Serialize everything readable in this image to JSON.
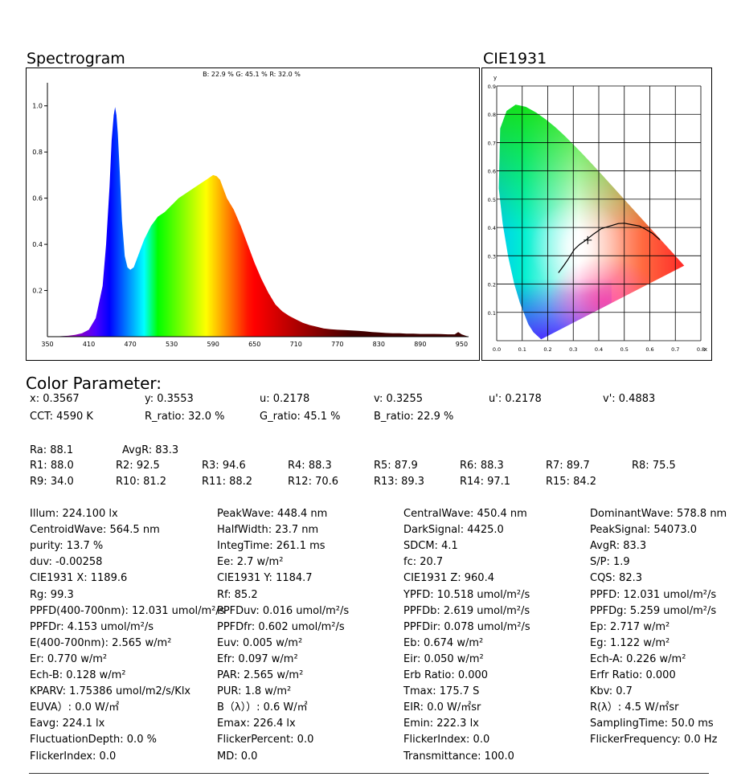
{
  "spectrogram": {
    "title": "Spectrogram",
    "ratio_label": "B: 22.9 %  G: 45.1 %  R: 32.0 %"
  },
  "cie": {
    "title": "CIE1931",
    "y_axis_label": "y",
    "x_axis_label": "x"
  },
  "chart_data": [
    {
      "type": "area",
      "title": "",
      "xlabel": "",
      "ylabel": "",
      "xlim": [
        350,
        960
      ],
      "ylim": [
        0,
        1.1
      ],
      "x_ticks": [
        350,
        410,
        470,
        530,
        590,
        650,
        710,
        770,
        830,
        890,
        950
      ],
      "y_ticks": [
        0.2,
        0.4,
        0.6,
        0.8,
        1.0
      ],
      "x_tick_labels": [
        "350",
        "410",
        "470",
        "530",
        "590",
        "650",
        "710",
        "770",
        "830",
        "890",
        "950"
      ],
      "y_tick_labels": [
        "0.2",
        "0.4",
        "0.6",
        "0.8",
        "1.0"
      ],
      "grid": false,
      "fill": "wavelength-colored spectrum",
      "x": [
        350,
        360,
        370,
        380,
        390,
        400,
        410,
        420,
        430,
        435,
        440,
        443,
        446,
        448,
        450,
        452,
        455,
        458,
        462,
        466,
        470,
        475,
        480,
        485,
        490,
        500,
        510,
        520,
        530,
        540,
        550,
        560,
        570,
        580,
        585,
        590,
        595,
        600,
        605,
        610,
        620,
        630,
        640,
        650,
        660,
        670,
        680,
        690,
        700,
        710,
        720,
        730,
        740,
        750,
        760,
        770,
        780,
        790,
        800,
        810,
        820,
        830,
        840,
        850,
        860,
        870,
        880,
        890,
        900,
        910,
        920,
        930,
        940,
        945,
        950,
        955,
        960
      ],
      "y": [
        0.0,
        0.0,
        0.002,
        0.004,
        0.008,
        0.015,
        0.03,
        0.08,
        0.22,
        0.4,
        0.65,
        0.85,
        0.96,
        0.995,
        0.96,
        0.88,
        0.7,
        0.5,
        0.35,
        0.3,
        0.29,
        0.3,
        0.34,
        0.38,
        0.42,
        0.48,
        0.52,
        0.54,
        0.57,
        0.6,
        0.62,
        0.64,
        0.66,
        0.68,
        0.69,
        0.7,
        0.695,
        0.68,
        0.64,
        0.6,
        0.55,
        0.48,
        0.4,
        0.32,
        0.25,
        0.19,
        0.14,
        0.11,
        0.09,
        0.075,
        0.06,
        0.05,
        0.043,
        0.036,
        0.032,
        0.03,
        0.029,
        0.027,
        0.025,
        0.023,
        0.02,
        0.018,
        0.016,
        0.015,
        0.015,
        0.013,
        0.013,
        0.012,
        0.012,
        0.012,
        0.011,
        0.01,
        0.01,
        0.02,
        0.01,
        0.005,
        0.0
      ]
    },
    {
      "type": "scatter",
      "title": "",
      "xlim": [
        0,
        0.8
      ],
      "ylim": [
        0,
        0.9
      ],
      "x_ticks": [
        0.0,
        0.1,
        0.2,
        0.3,
        0.4,
        0.5,
        0.6,
        0.7,
        0.8
      ],
      "y_ticks": [
        0.1,
        0.2,
        0.3,
        0.4,
        0.5,
        0.6,
        0.7,
        0.8,
        0.9
      ],
      "x_tick_labels": [
        "0.0",
        "0.1",
        "0.2",
        "0.3",
        "0.4",
        "0.5",
        "0.6",
        "0.7",
        "0.8"
      ],
      "y_tick_labels": [
        "0.1",
        "0.2",
        "0.3",
        "0.4",
        "0.5",
        "0.6",
        "0.7",
        "0.8",
        "0.9"
      ],
      "grid": true,
      "chromaticity_point": [
        0.3567,
        0.3553
      ],
      "spectral_locus": [
        [
          0.1741,
          0.005
        ],
        [
          0.144,
          0.0297
        ],
        [
          0.1241,
          0.0578
        ],
        [
          0.0913,
          0.1327
        ],
        [
          0.0687,
          0.2007
        ],
        [
          0.0454,
          0.295
        ],
        [
          0.0235,
          0.4127
        ],
        [
          0.0082,
          0.5384
        ],
        [
          0.0139,
          0.7502
        ],
        [
          0.0389,
          0.812
        ],
        [
          0.0743,
          0.8338
        ],
        [
          0.1142,
          0.8262
        ],
        [
          0.1547,
          0.8059
        ],
        [
          0.1929,
          0.7816
        ],
        [
          0.2296,
          0.7543
        ],
        [
          0.2658,
          0.7243
        ],
        [
          0.3016,
          0.6923
        ],
        [
          0.3373,
          0.6589
        ],
        [
          0.3731,
          0.6245
        ],
        [
          0.4087,
          0.5896
        ],
        [
          0.4441,
          0.5547
        ],
        [
          0.4788,
          0.5202
        ],
        [
          0.5125,
          0.4866
        ],
        [
          0.5448,
          0.4544
        ],
        [
          0.5752,
          0.4242
        ],
        [
          0.6029,
          0.3965
        ],
        [
          0.627,
          0.3725
        ],
        [
          0.6482,
          0.3514
        ],
        [
          0.6658,
          0.334
        ],
        [
          0.6801,
          0.3197
        ],
        [
          0.6915,
          0.3083
        ],
        [
          0.7006,
          0.2993
        ],
        [
          0.7347,
          0.2653
        ]
      ],
      "planckian_locus": [
        [
          0.242,
          0.24
        ],
        [
          0.264,
          0.267
        ],
        [
          0.28,
          0.288
        ],
        [
          0.305,
          0.323
        ],
        [
          0.325,
          0.34
        ],
        [
          0.345,
          0.352
        ],
        [
          0.38,
          0.377
        ],
        [
          0.41,
          0.396
        ],
        [
          0.44,
          0.404
        ],
        [
          0.477,
          0.414
        ],
        [
          0.5,
          0.415
        ],
        [
          0.53,
          0.41
        ],
        [
          0.56,
          0.405
        ],
        [
          0.585,
          0.393
        ],
        [
          0.61,
          0.38
        ],
        [
          0.64,
          0.356
        ]
      ]
    }
  ],
  "color_parameter": {
    "title": "Color Parameter:",
    "row1": [
      "x: 0.3567",
      "y: 0.3553",
      "u: 0.2178",
      "v: 0.3255",
      "u': 0.2178",
      "v': 0.4883"
    ],
    "row2": [
      "CCT: 4590 K",
      "R_ratio: 32.0 %",
      "G_ratio: 45.1 %",
      "B_ratio: 22.9 %"
    ],
    "row3": [
      "Ra: 88.1",
      "AvgR: 83.3"
    ],
    "row4": [
      "R1: 88.0",
      "R2: 92.5",
      "R3: 94.6",
      "R4: 88.3",
      "R5: 87.9",
      "R6: 88.3",
      "R7: 89.7",
      "R8: 75.5"
    ],
    "row5": [
      "R9: 34.0",
      "R10: 81.2",
      "R11: 88.2",
      "R12: 70.6",
      "R13: 89.3",
      "R14: 97.1",
      "R15: 84.2"
    ]
  },
  "params": {
    "col1": [
      "Illum: 224.100 lx",
      "CentroidWave: 564.5 nm",
      "purity: 13.7 %",
      "duv: -0.00258",
      "CIE1931 X: 1189.6",
      "Rg: 99.3",
      "PPFD(400-700nm): 12.031 umol/m²/s",
      "PPFDr: 4.153 umol/m²/s",
      "E(400-700nm): 2.565 w/m²",
      "Er: 0.770 w/m²",
      "Ech-B: 0.128 w/m²",
      "KPARV: 1.75386 umol/m2/s/Klx",
      "EUVA）: 0.0 W/㎡",
      "Eavg: 224.1 lx",
      "FluctuationDepth: 0.0 %",
      "FlickerIndex: 0.0"
    ],
    "col2": [
      "PeakWave: 448.4 nm",
      "HalfWidth: 23.7 nm",
      "IntegTime: 261.1 ms",
      "Ee: 2.7 w/m²",
      "CIE1931 Y: 1184.7",
      "Rf: 85.2",
      "PPFDuv: 0.016 umol/m²/s",
      "PPFDfr: 0.602 umol/m²/s",
      "Euv: 0.005 w/m²",
      "Efr: 0.097 w/m²",
      "PAR: 2.565 w/m²",
      "PUR: 1.8 w/m²",
      "B（λ））: 0.6 W/㎡",
      "Emax: 226.4 lx",
      "FlickerPercent: 0.0",
      "MD: 0.0"
    ],
    "col3": [
      "CentralWave: 450.4 nm",
      "DarkSignal: 4425.0",
      "SDCM: 4.1",
      "fc: 20.7",
      "CIE1931 Z: 960.4",
      "YPFD: 10.518 umol/m²/s",
      "PPFDb: 2.619 umol/m²/s",
      "PPFDir: 0.078 umol/m²/s",
      "Eb: 0.674 w/m²",
      "Eir: 0.050 w/m²",
      "Erb Ratio: 0.000",
      "Tmax: 175.7 S",
      "EIR: 0.0 W/㎡sr",
      "Emin: 222.3 lx",
      "FlickerIndex: 0.0",
      "Transmittance: 100.0"
    ],
    "col4": [
      "DominantWave: 578.8 nm",
      "PeakSignal: 54073.0",
      "AvgR: 83.3",
      "S/P: 1.9",
      "CQS: 82.3",
      "PPFD: 12.031 umol/m²/s",
      "PPFDg: 5.259 umol/m²/s",
      "Ep: 2.717 w/m²",
      "Eg: 1.122 w/m²",
      "Ech-A: 0.226 w/m²",
      "Erfr Ratio: 0.000",
      "Kbv: 0.7",
      "R(λ）: 4.5 W/㎡sr",
      "SamplingTime: 50.0 ms",
      "FlickerFrequency: 0.0 Hz"
    ]
  }
}
